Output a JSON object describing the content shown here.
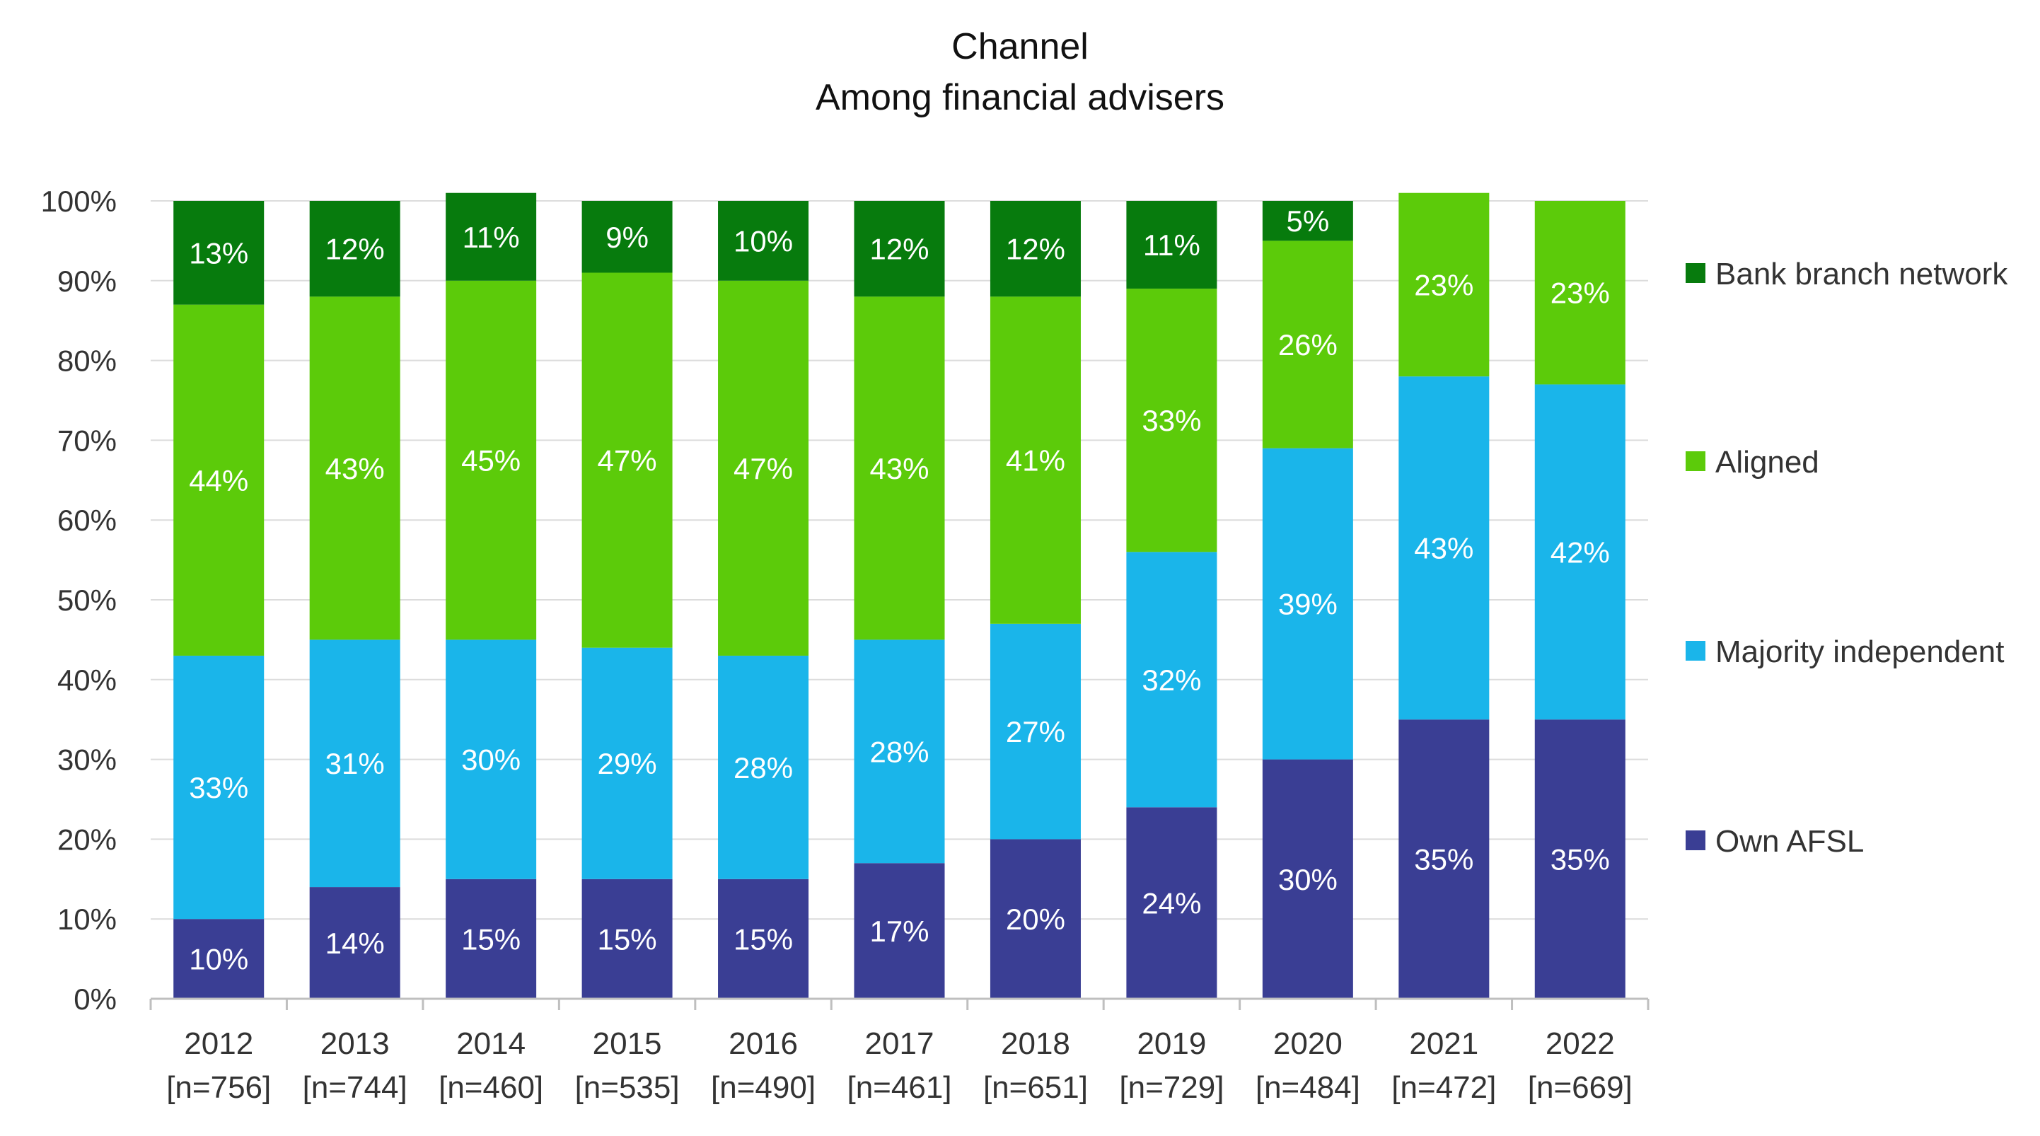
{
  "chart_data": {
    "type": "bar",
    "stacked": true,
    "title": "Channel",
    "subtitle": "Among financial advisers",
    "xlabel": "",
    "ylabel": "",
    "ylim": [
      0,
      100
    ],
    "y_ticks": [
      "0%",
      "10%",
      "20%",
      "30%",
      "40%",
      "50%",
      "60%",
      "70%",
      "80%",
      "90%",
      "100%"
    ],
    "grid": true,
    "legend_position": "right",
    "categories": [
      "2012",
      "2013",
      "2014",
      "2015",
      "2016",
      "2017",
      "2018",
      "2019",
      "2020",
      "2021",
      "2022"
    ],
    "sample_sizes": [
      "[n=756]",
      "[n=744]",
      "[n=460]",
      "[n=535]",
      "[n=490]",
      "[n=461]",
      "[n=651]",
      "[n=729]",
      "[n=484]",
      "[n=472]",
      "[n=669]"
    ],
    "series": [
      {
        "name": "Own AFSL",
        "color": "#3a3e94",
        "values": [
          10,
          14,
          15,
          15,
          15,
          17,
          20,
          24,
          30,
          35,
          35
        ]
      },
      {
        "name": "Majority independent",
        "color": "#1ab5ea",
        "values": [
          33,
          31,
          30,
          29,
          28,
          28,
          27,
          32,
          39,
          43,
          42
        ]
      },
      {
        "name": "Aligned",
        "color": "#5ccb0a",
        "values": [
          44,
          43,
          45,
          47,
          47,
          43,
          41,
          33,
          26,
          23,
          23
        ]
      },
      {
        "name": "Bank branch network",
        "color": "#077b0d",
        "values": [
          13,
          12,
          11,
          9,
          10,
          12,
          12,
          11,
          5,
          null,
          null
        ]
      }
    ],
    "legend_order": [
      "Bank branch network",
      "Aligned",
      "Majority independent",
      "Own AFSL"
    ]
  }
}
